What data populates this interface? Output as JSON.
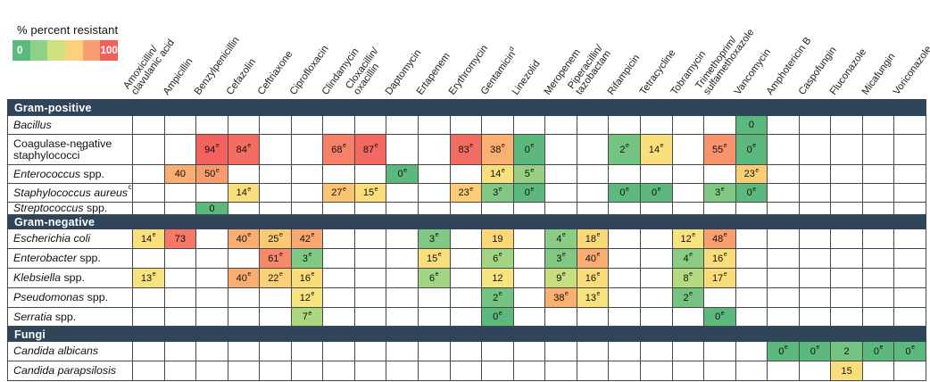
{
  "chart_data": {
    "type": "heatmap",
    "title": "",
    "legend": {
      "title": "% percent resistant",
      "min_label": "0",
      "max_label": "100",
      "swatches": [
        "#5cba7d",
        "#90d189",
        "#cfe07f",
        "#fbd17c",
        "#f89e72",
        "#f2605e"
      ]
    },
    "colormap": {
      "stops": [
        [
          0,
          "#5cb87c"
        ],
        [
          4,
          "#8ccd85"
        ],
        [
          8,
          "#b5da80"
        ],
        [
          12,
          "#f8e47e"
        ],
        [
          20,
          "#fbd577"
        ],
        [
          28,
          "#fbc271"
        ],
        [
          45,
          "#f9a470"
        ],
        [
          60,
          "#f78a6b"
        ],
        [
          80,
          "#f47063"
        ],
        [
          100,
          "#f25c5c"
        ]
      ]
    },
    "cell_superscript": "e",
    "columns": [
      {
        "lines": [
          "Amoxicillin/",
          "clavulanic acid"
        ],
        "sup": ""
      },
      {
        "lines": [
          "Ampicillin"
        ],
        "sup": ""
      },
      {
        "lines": [
          "Benzylpenicillin"
        ],
        "sup": ""
      },
      {
        "lines": [
          "Cefazolin"
        ],
        "sup": ""
      },
      {
        "lines": [
          "Ceftriaxone"
        ],
        "sup": ""
      },
      {
        "lines": [
          "Ciprofloxacin"
        ],
        "sup": ""
      },
      {
        "lines": [
          "Clindamycin"
        ],
        "sup": ""
      },
      {
        "lines": [
          "Cloxacillin/",
          "oxacillin"
        ],
        "sup": ""
      },
      {
        "lines": [
          "Daptomycin"
        ],
        "sup": ""
      },
      {
        "lines": [
          "Ertapenem"
        ],
        "sup": ""
      },
      {
        "lines": [
          "Erythromycin"
        ],
        "sup": ""
      },
      {
        "lines": [
          "Gentamicin"
        ],
        "sup": "d"
      },
      {
        "lines": [
          "Linezolid"
        ],
        "sup": ""
      },
      {
        "lines": [
          "Meropenem"
        ],
        "sup": ""
      },
      {
        "lines": [
          "Piperacillin/",
          "tazobactam"
        ],
        "sup": ""
      },
      {
        "lines": [
          "Rifampicin"
        ],
        "sup": ""
      },
      {
        "lines": [
          "Tetracycline"
        ],
        "sup": ""
      },
      {
        "lines": [
          "Tobramycin"
        ],
        "sup": ""
      },
      {
        "lines": [
          "Trimethoprim/",
          "sulfamethoxazole"
        ],
        "sup": ""
      },
      {
        "lines": [
          "Vancomycin"
        ],
        "sup": ""
      },
      {
        "lines": [
          "Amphotericin B"
        ],
        "sup": ""
      },
      {
        "lines": [
          "Caspofungin"
        ],
        "sup": ""
      },
      {
        "lines": [
          "Fluconazole"
        ],
        "sup": ""
      },
      {
        "lines": [
          "Micafungin"
        ],
        "sup": ""
      },
      {
        "lines": [
          "Voriconazole"
        ],
        "sup": ""
      }
    ],
    "sections": [
      {
        "title": "Gram-positive",
        "rows": [
          {
            "label_parts": [
              [
                "Bacillus",
                1
              ]
            ],
            "label_sup": "",
            "cells": [
              [
                19,
                "0",
                0
              ]
            ]
          },
          {
            "label_parts": [
              [
                "Coagulase-negative staphylococci",
                0
              ]
            ],
            "label_sup": "b",
            "cells": [
              [
                2,
                "94",
                1
              ],
              [
                3,
                "84",
                1
              ],
              [
                6,
                "68",
                1
              ],
              [
                7,
                "87",
                1
              ],
              [
                10,
                "83",
                1
              ],
              [
                11,
                "38",
                1
              ],
              [
                12,
                "0",
                1
              ],
              [
                15,
                "2",
                1
              ],
              [
                16,
                "14",
                1
              ],
              [
                18,
                "55",
                1
              ],
              [
                19,
                "0",
                1
              ]
            ]
          },
          {
            "label_parts": [
              [
                "Enterococcus",
                1
              ],
              [
                " spp.",
                0
              ]
            ],
            "label_sup": "",
            "cells": [
              [
                1,
                "40",
                0
              ],
              [
                2,
                "50",
                1
              ],
              [
                8,
                "0",
                1
              ],
              [
                11,
                "14",
                1
              ],
              [
                12,
                "5",
                1
              ],
              [
                19,
                "23",
                1
              ]
            ]
          },
          {
            "label_parts": [
              [
                "Staphylococcus aureus",
                1
              ]
            ],
            "label_sup": "c",
            "cells": [
              [
                3,
                "14",
                1
              ],
              [
                6,
                "27",
                1
              ],
              [
                7,
                "15",
                1
              ],
              [
                10,
                "23",
                1
              ],
              [
                11,
                "3",
                1
              ],
              [
                12,
                "0",
                1
              ],
              [
                15,
                "0",
                1
              ],
              [
                16,
                "0",
                1
              ],
              [
                18,
                "3",
                1
              ],
              [
                19,
                "0",
                1
              ]
            ]
          },
          {
            "label_parts": [
              [
                "Streptococcus",
                1
              ],
              [
                " spp.",
                0
              ]
            ],
            "label_sup": "",
            "cells": [
              [
                2,
                "0",
                0
              ]
            ]
          }
        ]
      },
      {
        "title": "Gram-negative",
        "rows": [
          {
            "label_parts": [
              [
                "Escherichia coli",
                1
              ]
            ],
            "label_sup": "",
            "cells": [
              [
                0,
                "14",
                1
              ],
              [
                1,
                "73",
                0
              ],
              [
                3,
                "40",
                1
              ],
              [
                4,
                "25",
                1
              ],
              [
                5,
                "42",
                1
              ],
              [
                9,
                "3",
                1
              ],
              [
                11,
                "19",
                0
              ],
              [
                13,
                "4",
                1
              ],
              [
                14,
                "18",
                1
              ],
              [
                17,
                "12",
                1
              ],
              [
                18,
                "48",
                1
              ]
            ]
          },
          {
            "label_parts": [
              [
                "Enterobacter",
                1
              ],
              [
                " spp.",
                0
              ]
            ],
            "label_sup": "",
            "cells": [
              [
                4,
                "61",
                1
              ],
              [
                5,
                "3",
                1
              ],
              [
                9,
                "15",
                1
              ],
              [
                11,
                "6",
                1
              ],
              [
                13,
                "3",
                1
              ],
              [
                14,
                "40",
                1
              ],
              [
                17,
                "4",
                1
              ],
              [
                18,
                "16",
                1
              ]
            ]
          },
          {
            "label_parts": [
              [
                "Klebsiella",
                1
              ],
              [
                " spp.",
                0
              ]
            ],
            "label_sup": "",
            "cells": [
              [
                0,
                "13",
                1
              ],
              [
                3,
                "40",
                1
              ],
              [
                4,
                "22",
                1
              ],
              [
                5,
                "16",
                1
              ],
              [
                9,
                "6",
                1
              ],
              [
                11,
                "12",
                0
              ],
              [
                13,
                "9",
                1
              ],
              [
                14,
                "16",
                1
              ],
              [
                17,
                "8",
                1
              ],
              [
                18,
                "17",
                1
              ]
            ]
          },
          {
            "label_parts": [
              [
                "Pseudomonas",
                1
              ],
              [
                " spp.",
                0
              ]
            ],
            "label_sup": "",
            "cells": [
              [
                5,
                "12",
                1
              ],
              [
                11,
                "2",
                1
              ],
              [
                13,
                "38",
                1
              ],
              [
                14,
                "13",
                1
              ],
              [
                17,
                "2",
                1
              ]
            ]
          },
          {
            "label_parts": [
              [
                "Serratia",
                1
              ],
              [
                " spp.",
                0
              ]
            ],
            "label_sup": "",
            "cells": [
              [
                5,
                "7",
                1
              ],
              [
                11,
                "0",
                1
              ],
              [
                18,
                "0",
                1
              ]
            ]
          }
        ]
      },
      {
        "title": "Fungi",
        "rows": [
          {
            "label_parts": [
              [
                "Candida albicans",
                1
              ]
            ],
            "label_sup": "",
            "cells": [
              [
                20,
                "0",
                1
              ],
              [
                21,
                "0",
                1
              ],
              [
                22,
                "2",
                0
              ],
              [
                23,
                "0",
                1
              ],
              [
                24,
                "0",
                1
              ]
            ]
          },
          {
            "label_parts": [
              [
                "Candida parapsilosis",
                1
              ]
            ],
            "label_sup": "",
            "cells": [
              [
                22,
                "15",
                0
              ]
            ]
          }
        ]
      }
    ]
  }
}
